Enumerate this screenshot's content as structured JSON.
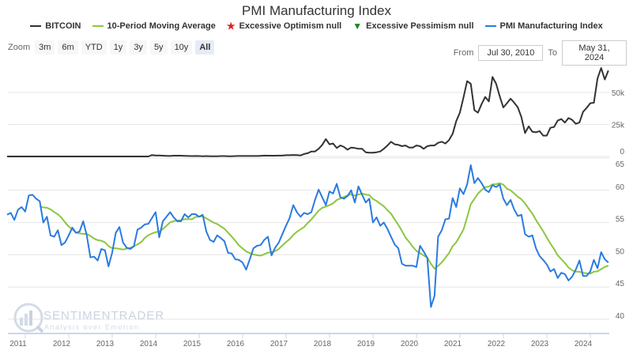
{
  "header": {
    "title": "PMI Manufacturing Index"
  },
  "legend": [
    {
      "label": "BITCOIN",
      "color": "#333333",
      "icon": "line"
    },
    {
      "label": "10-Period Moving Average",
      "color": "#8cc63f",
      "icon": "line"
    },
    {
      "label": "Excessive Optimism null",
      "color": "#e02020",
      "icon": "star-marker"
    },
    {
      "label": "Excessive Pessimism null",
      "color": "#1a8a1a",
      "icon": "down-triangle-marker"
    },
    {
      "label": "PMI Manufacturing Index",
      "color": "#2a7be0",
      "icon": "line"
    }
  ],
  "zoom": {
    "label": "Zoom",
    "buttons": [
      "3m",
      "6m",
      "YTD",
      "1y",
      "3y",
      "5y",
      "10y",
      "All"
    ],
    "active": "All"
  },
  "range": {
    "from_label": "From",
    "from": "Jul 30, 2010",
    "to_label": "To",
    "to": "May 31, 2024"
  },
  "watermark": {
    "name": "SENTIMENTRADER",
    "tagline": "Analysis over Emotion"
  },
  "chart_data": {
    "type": "line",
    "title": "PMI Manufacturing Index",
    "frequency": "monthly",
    "x_start": "2010-07",
    "x_end": "2024-05",
    "x_ticks": [
      "2011",
      "2012",
      "2013",
      "2014",
      "2015",
      "2016",
      "2017",
      "2018",
      "2019",
      "2020",
      "2021",
      "2022",
      "2023",
      "2024"
    ],
    "panels": [
      {
        "name": "top",
        "y_ticks": [
          "0",
          "25k",
          "50k"
        ],
        "ylim": [
          0,
          75
        ],
        "unit": "thousands USD",
        "grid": true,
        "series": [
          {
            "name": "BITCOIN",
            "color": "#333333",
            "values": [
              0,
              0,
              0,
              0,
              0,
              0,
              0,
              0,
              0,
              0,
              0,
              0,
              0,
              0,
              0,
              0,
              0,
              0,
              0,
              0,
              0,
              0,
              0,
              0,
              0,
              0,
              0,
              0,
              0,
              0,
              0,
              0,
              0,
              0,
              0,
              0,
              0,
              0,
              0,
              0,
              1.1,
              0.8,
              0.8,
              0.6,
              0.5,
              0.4,
              0.6,
              0.6,
              0.6,
              0.5,
              0.4,
              0.3,
              0.4,
              0.3,
              0.2,
              0.3,
              0.2,
              0.2,
              0.2,
              0.3,
              0.3,
              0.2,
              0.2,
              0.3,
              0.4,
              0.4,
              0.4,
              0.4,
              0.4,
              0.4,
              0.5,
              0.7,
              0.6,
              0.6,
              0.6,
              0.7,
              0.7,
              1.0,
              1.0,
              1.2,
              1.1,
              0.8,
              1.9,
              2.5,
              3.9,
              3.9,
              6.0,
              9.1,
              13.6,
              9.5,
              10.1,
              6.6,
              8.6,
              7.4,
              5.3,
              7.0,
              6.6,
              6.0,
              6.0,
              3.3,
              2.9,
              2.9,
              3.3,
              3.9,
              6.0,
              8.6,
              11.5,
              9.5,
              9.1,
              8.0,
              8.6,
              7.0,
              7.0,
              8.6,
              8.0,
              6.0,
              8.0,
              8.6,
              8.6,
              10.7,
              11.5,
              10.1,
              12.8,
              17.7,
              27.6,
              34.2,
              46.1,
              58.8,
              56.8,
              36.2,
              34.2,
              40.9,
              46.5,
              43.0,
              62.1,
              56.8,
              47.1,
              38.3,
              41.6,
              45.1,
              42.0,
              38.3,
              30.7,
              18.3,
              23.5,
              19.3,
              18.9,
              19.8,
              16.3,
              16.3,
              22.4,
              23.0,
              28.0,
              29.2,
              26.5,
              30.0,
              28.6,
              25.5,
              26.5,
              34.8,
              37.9,
              41.6,
              42.0,
              60.9,
              69.1,
              60.1,
              67.1
            ]
          }
        ]
      },
      {
        "name": "bottom",
        "y_ticks": [
          "40",
          "45",
          "50",
          "55",
          "60",
          "65"
        ],
        "ylim": [
          37.5,
          65
        ],
        "grid": true,
        "series": [
          {
            "name": "PMI Manufacturing Index",
            "color": "#2a7be0",
            "values": [
              56.2,
              56.5,
              55.4,
              57.0,
              57.4,
              56.7,
              59.2,
              59.3,
              58.7,
              58.3,
              55.0,
              55.9,
              53.0,
              52.8,
              53.8,
              51.5,
              51.9,
              53.0,
              54.2,
              53.4,
              53.6,
              55.2,
              53.0,
              49.6,
              49.7,
              49.1,
              50.9,
              50.7,
              48.2,
              50.3,
              53.4,
              54.3,
              51.9,
              51.1,
              50.9,
              51.3,
              53.9,
              54.2,
              54.7,
              54.8,
              55.7,
              56.6,
              52.7,
              55.2,
              55.9,
              56.6,
              55.8,
              55.2,
              55.2,
              56.3,
              55.8,
              56.3,
              56.3,
              55.9,
              56.2,
              53.6,
              52.3,
              52.0,
              53.0,
              52.6,
              52.1,
              50.3,
              50.2,
              49.3,
              49.2,
              48.8,
              47.7,
              49.3,
              51.0,
              51.4,
              51.5,
              52.3,
              52.8,
              49.9,
              51.1,
              51.9,
              53.2,
              54.5,
              55.7,
              57.7,
              56.6,
              55.9,
              56.5,
              56.3,
              56.6,
              58.5,
              60.1,
              58.9,
              57.7,
              59.8,
              59.5,
              61.0,
              58.9,
              58.7,
              59.1,
              60.0,
              58.1,
              60.6,
              59.3,
              58.1,
              58.7,
              55.0,
              55.8,
              54.5,
              55.0,
              54.0,
              52.8,
              51.6,
              51.0,
              48.6,
              48.3,
              48.3,
              48.3,
              48.1,
              51.4,
              50.5,
              49.5,
              41.9,
              43.6,
              52.8,
              53.8,
              55.5,
              55.6,
              58.8,
              57.4,
              60.3,
              59.4,
              60.9,
              63.9,
              61.1,
              61.9,
              61.1,
              60.1,
              59.7,
              60.8,
              60.5,
              60.9,
              58.7,
              57.7,
              58.5,
              57.0,
              56.0,
              56.2,
              53.2,
              52.8,
              53.0,
              51.0,
              49.8,
              49.2,
              48.5,
              47.4,
              47.8,
              46.4,
              47.2,
              47.0,
              46.0,
              46.6,
              47.7,
              49.1,
              46.7,
              46.7,
              47.4,
              49.2,
              47.9,
              50.4,
              49.3,
              48.8
            ]
          },
          {
            "name": "10-Period Moving Average",
            "color": "#8cc63f",
            "period": 10,
            "source": "PMI Manufacturing Index"
          },
          {
            "name": "Excessive Optimism null",
            "color": "#e02020",
            "values": []
          },
          {
            "name": "Excessive Pessimism null",
            "color": "#1a8a1a",
            "values": []
          }
        ]
      }
    ]
  }
}
